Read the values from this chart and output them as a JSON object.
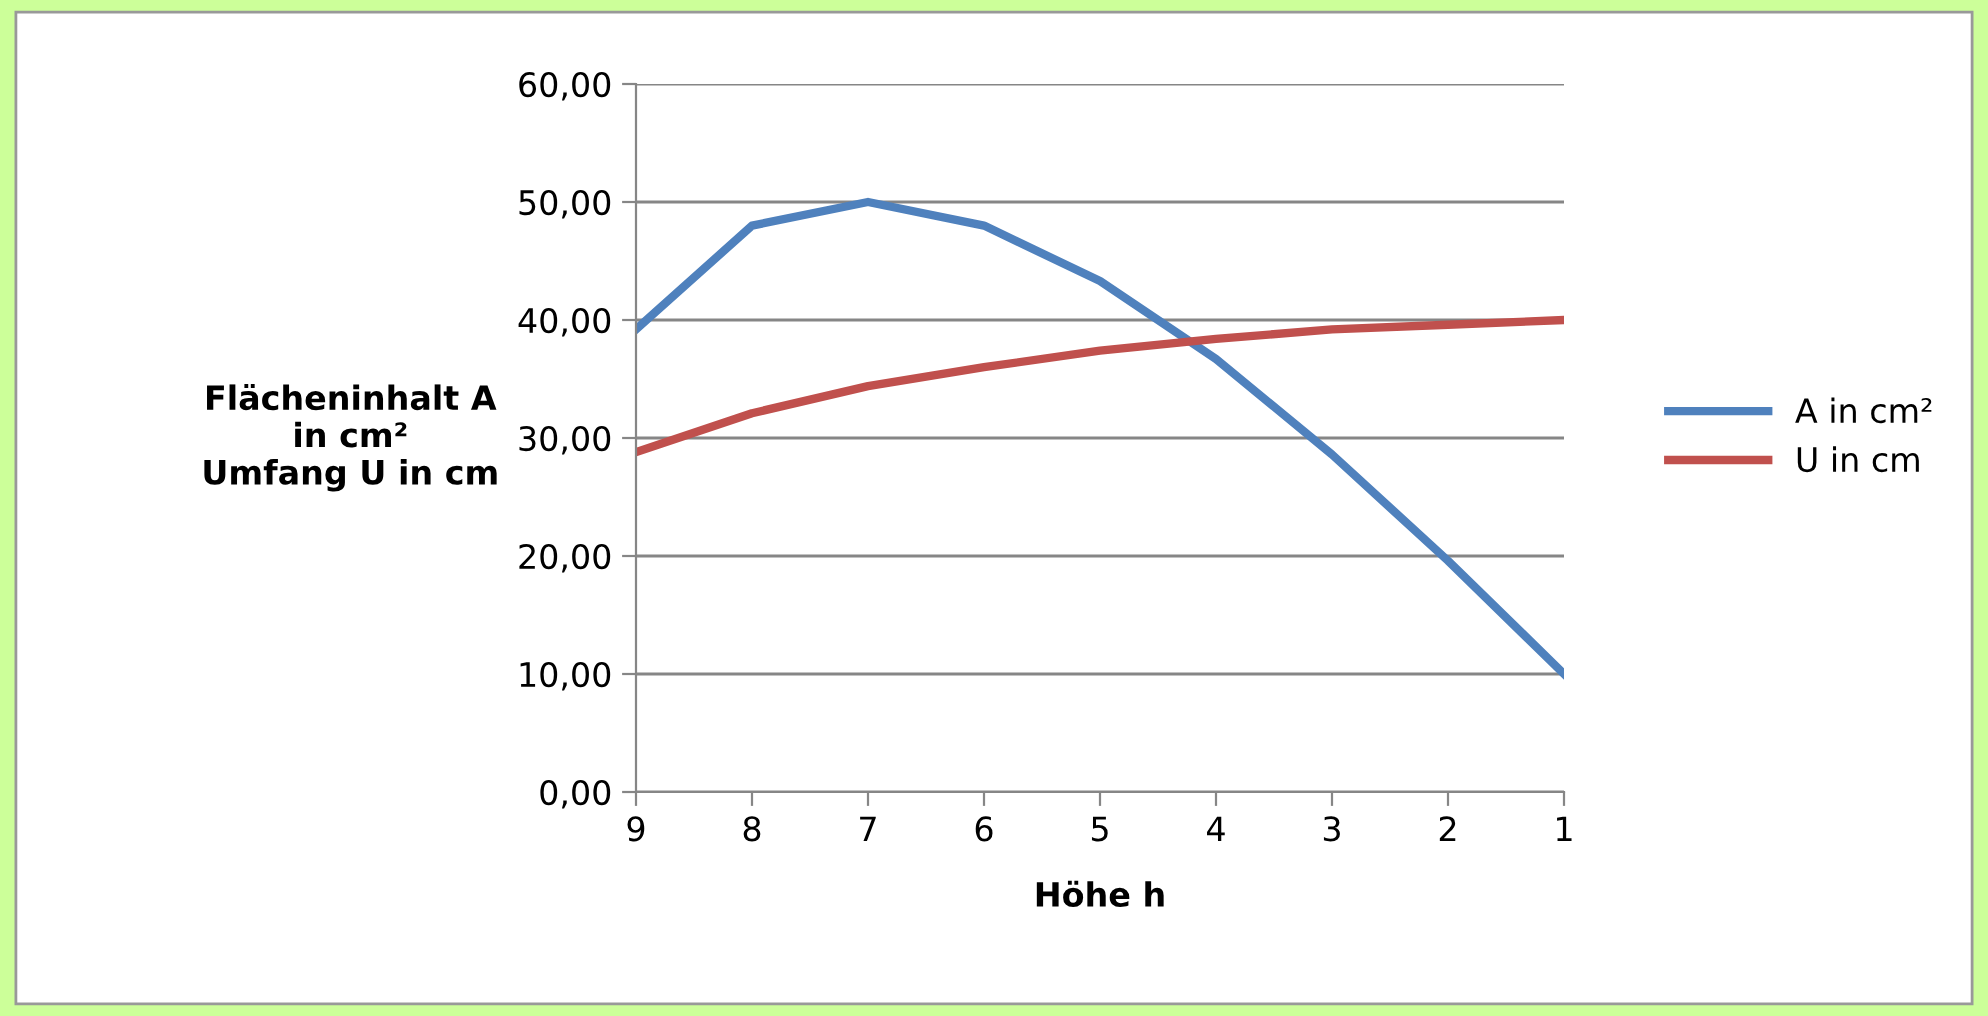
{
  "chart_data": {
    "type": "line",
    "xlabel": "Höhe h",
    "ylabel": "Flächeninhalt A\nin cm²\nUmfang U in cm",
    "categories": [
      "9",
      "8",
      "7",
      "6",
      "5",
      "4",
      "3",
      "2",
      "1"
    ],
    "series": [
      {
        "name": "A in cm²",
        "color": "#4f81bd",
        "values": [
          39.2,
          48.0,
          50.0,
          48.0,
          43.3,
          36.7,
          28.6,
          19.6,
          10.0
        ]
      },
      {
        "name": "U in cm",
        "color": "#c0504d",
        "values": [
          28.8,
          32.1,
          34.4,
          36.0,
          37.4,
          38.4,
          39.2,
          39.6,
          40.0
        ]
      }
    ],
    "ylim": [
      0,
      60
    ],
    "yticks": [
      {
        "value": 0,
        "label": "0,00"
      },
      {
        "value": 10,
        "label": "10,00"
      },
      {
        "value": 20,
        "label": "20,00"
      },
      {
        "value": 30,
        "label": "30,00"
      },
      {
        "value": 40,
        "label": "40,00"
      },
      {
        "value": 50,
        "label": "50,00"
      },
      {
        "value": 60,
        "label": "60,00"
      }
    ],
    "grid": "y",
    "legend": "right",
    "marker": "none",
    "line_style": "solid"
  }
}
